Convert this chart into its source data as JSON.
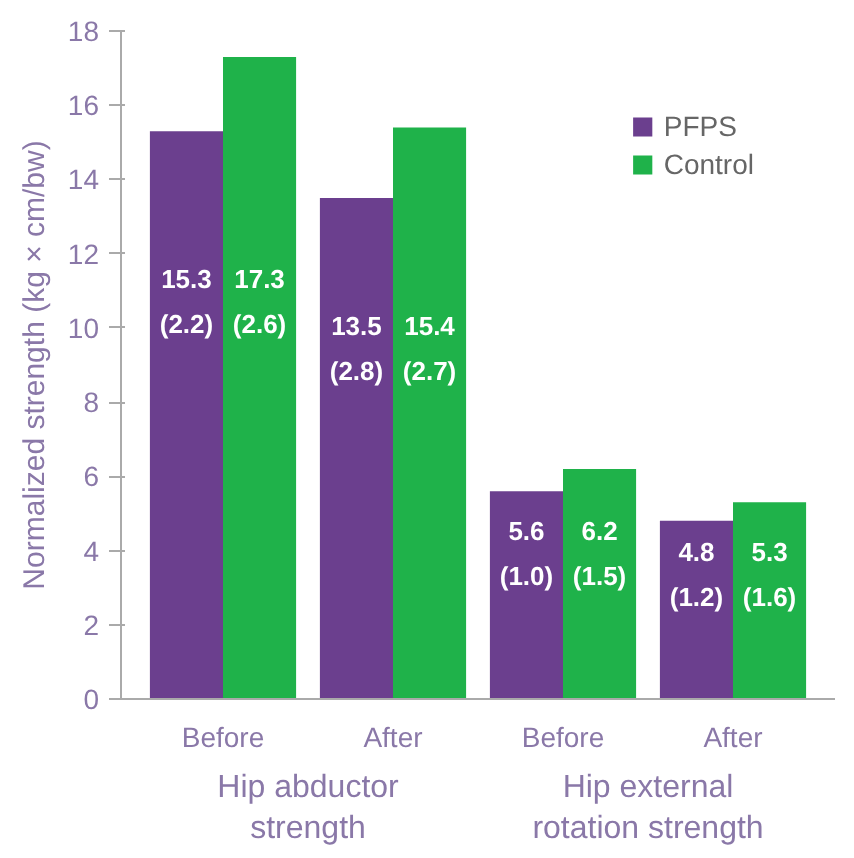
{
  "chart_data": {
    "type": "bar",
    "ylabel": "Normalized strength (kg × cm/bw)",
    "categories": [
      "Before",
      "After",
      "Before",
      "After"
    ],
    "series": [
      {
        "name": "PFPS",
        "color": "#6b3f8e",
        "values": [
          15.3,
          13.5,
          5.6,
          4.8
        ],
        "value_labels": [
          "15.3\n(2.2)",
          "13.5\n(2.8)",
          "5.6\n(1.0)",
          "4.8\n(1.2)"
        ]
      },
      {
        "name": "Control",
        "color": "#1fb24a",
        "values": [
          17.3,
          15.4,
          6.2,
          5.3
        ],
        "value_labels": [
          "17.3\n(2.6)",
          "15.4\n(2.7)",
          "6.2\n(1.5)",
          "5.3\n(1.6)"
        ]
      }
    ],
    "annotations": [
      "Hip abductor\nstrength",
      "Hip external\nrotation strength"
    ],
    "ylim": [
      0,
      18
    ],
    "yticks": [
      0,
      2,
      4,
      6,
      8,
      10,
      12,
      14,
      16,
      18
    ],
    "grid": false,
    "legend": "top right"
  }
}
